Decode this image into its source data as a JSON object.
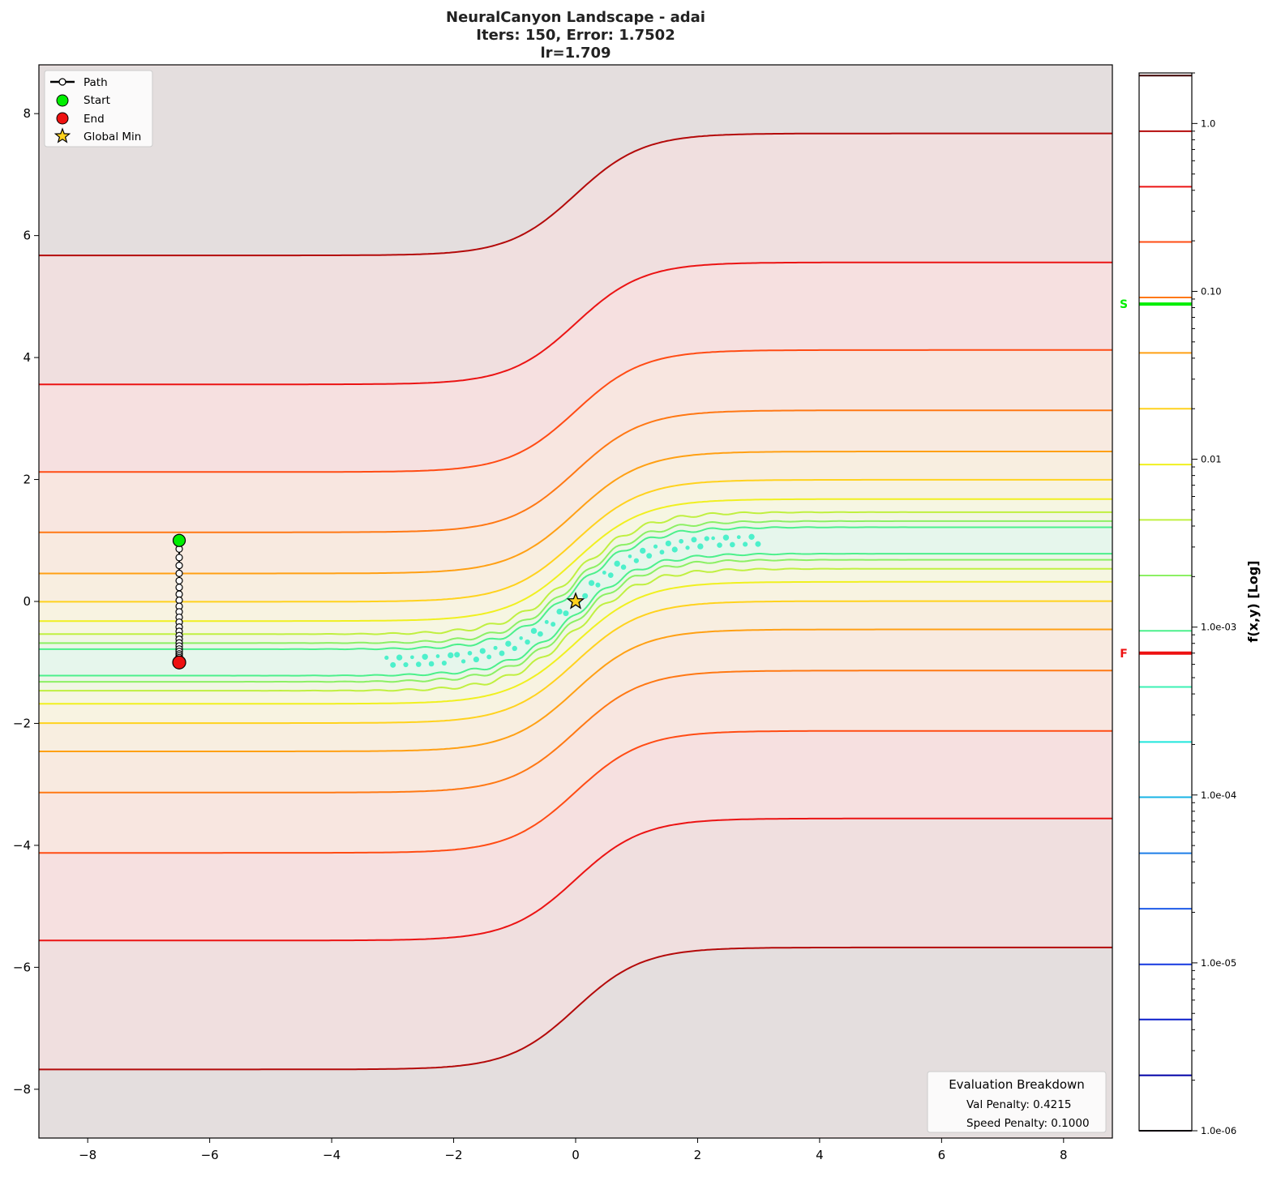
{
  "chart_data": {
    "type": "contour",
    "title_lines": [
      "NeuralCanyon Landscape - adai",
      "Iters: 150, Error: 1.7502",
      "lr=1.709"
    ],
    "xlim": [
      -8.8,
      8.8
    ],
    "ylim": [
      -8.8,
      8.8
    ],
    "x_ticks": [
      -8,
      -6,
      -4,
      -2,
      0,
      2,
      4,
      6,
      8
    ],
    "y_ticks": [
      -8,
      -6,
      -4,
      -2,
      0,
      2,
      4,
      6,
      8
    ],
    "grid": false,
    "contour_levels": [
      1e-06,
      2.14e-06,
      4.6e-06,
      9.8e-06,
      2.1e-05,
      4.5e-05,
      9.7e-05,
      0.000207,
      0.00044,
      0.00095,
      0.00203,
      0.00435,
      0.0093,
      0.02,
      0.043,
      0.092,
      0.197,
      0.42,
      0.9,
      1.93
    ],
    "level_colors": [
      "#1a0010",
      "#0000a8",
      "#0a1ecc",
      "#1438e0",
      "#1e5ae8",
      "#1e7ee8",
      "#18b4e6",
      "#20e6dc",
      "#3cf0b4",
      "#4cf08c",
      "#8cf064",
      "#c0f040",
      "#f0f020",
      "#ffd21e",
      "#ffa014",
      "#ff7814",
      "#ff4c14",
      "#eb1414",
      "#b40a0a",
      "#3c0000"
    ],
    "path": {
      "x": -6.5,
      "y": [
        1.0,
        0.86,
        0.72,
        0.59,
        0.46,
        0.34,
        0.23,
        0.12,
        0.02,
        -0.08,
        -0.17,
        -0.26,
        -0.34,
        -0.42,
        -0.49,
        -0.56,
        -0.62,
        -0.68,
        -0.73,
        -0.78,
        -0.82,
        -0.86,
        -0.89,
        -0.92,
        -0.95,
        -0.97,
        -0.99,
        -1.0
      ],
      "start": [
        -6.5,
        1.0
      ],
      "end": [
        -6.5,
        -1.0
      ]
    },
    "global_min": [
      0,
      0
    ],
    "legend": {
      "placement": "upper-left",
      "entries": [
        "Path",
        "Start",
        "End",
        "Global Min"
      ]
    },
    "colorbar": {
      "label": "f(x,y) [Log]",
      "scale": "log",
      "range": [
        1e-06,
        2.0
      ],
      "ticks": [
        {
          "value": 1.0,
          "label": "1.0"
        },
        {
          "value": 0.1,
          "label": "0.10"
        },
        {
          "value": 0.01,
          "label": "0.01"
        },
        {
          "value": 0.001,
          "label": "1.0e-03"
        },
        {
          "value": 0.0001,
          "label": "1.0e-04"
        },
        {
          "value": 1e-05,
          "label": "1.0e-05"
        },
        {
          "value": 1e-06,
          "label": "1.0e-06"
        }
      ],
      "markers": [
        {
          "label": "S",
          "value": 0.084,
          "color": "#00ee00"
        },
        {
          "label": "F",
          "value": 0.0007,
          "color": "#ee1111"
        }
      ]
    },
    "evaluation_box": {
      "title": "Evaluation Breakdown",
      "lines": [
        "Val Penalty: 0.4215",
        "Speed Penalty: 0.1000"
      ]
    }
  }
}
